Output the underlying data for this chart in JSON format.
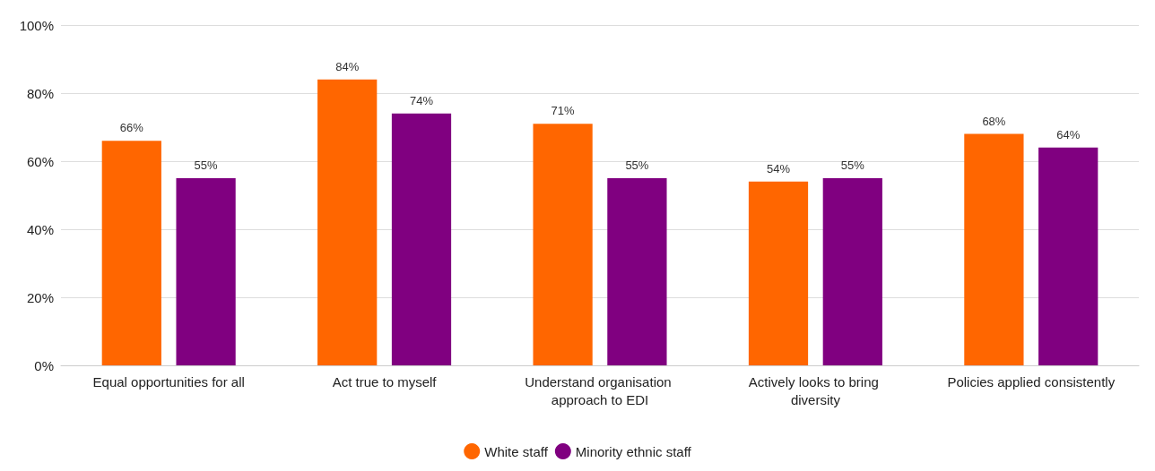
{
  "chart_data": {
    "type": "bar",
    "categories": [
      "Equal opportunities for all",
      "Act true to myself",
      "Understand organisation approach to EDI",
      "Actively looks to bring diversity",
      "Policies applied consistently"
    ],
    "series": [
      {
        "name": "White staff",
        "color": "#ff6600",
        "values": [
          66,
          84,
          71,
          54,
          68
        ],
        "value_labels": [
          "66%",
          "84%",
          "71%",
          "54%",
          "68%"
        ]
      },
      {
        "name": "Minority ethnic staff",
        "color": "#800080",
        "values": [
          55,
          74,
          55,
          55,
          64
        ],
        "value_labels": [
          "55%",
          "74%",
          "55%",
          "55%",
          "64%"
        ]
      }
    ],
    "ylim": [
      0,
      100
    ],
    "yticks": [
      {
        "value": 0,
        "label": "0%"
      },
      {
        "value": 20,
        "label": "20%"
      },
      {
        "value": 40,
        "label": "40%"
      },
      {
        "value": 60,
        "label": "60%"
      },
      {
        "value": 80,
        "label": "80%"
      },
      {
        "value": 100,
        "label": "100%"
      }
    ],
    "grid": "y",
    "legend": "bottom"
  }
}
